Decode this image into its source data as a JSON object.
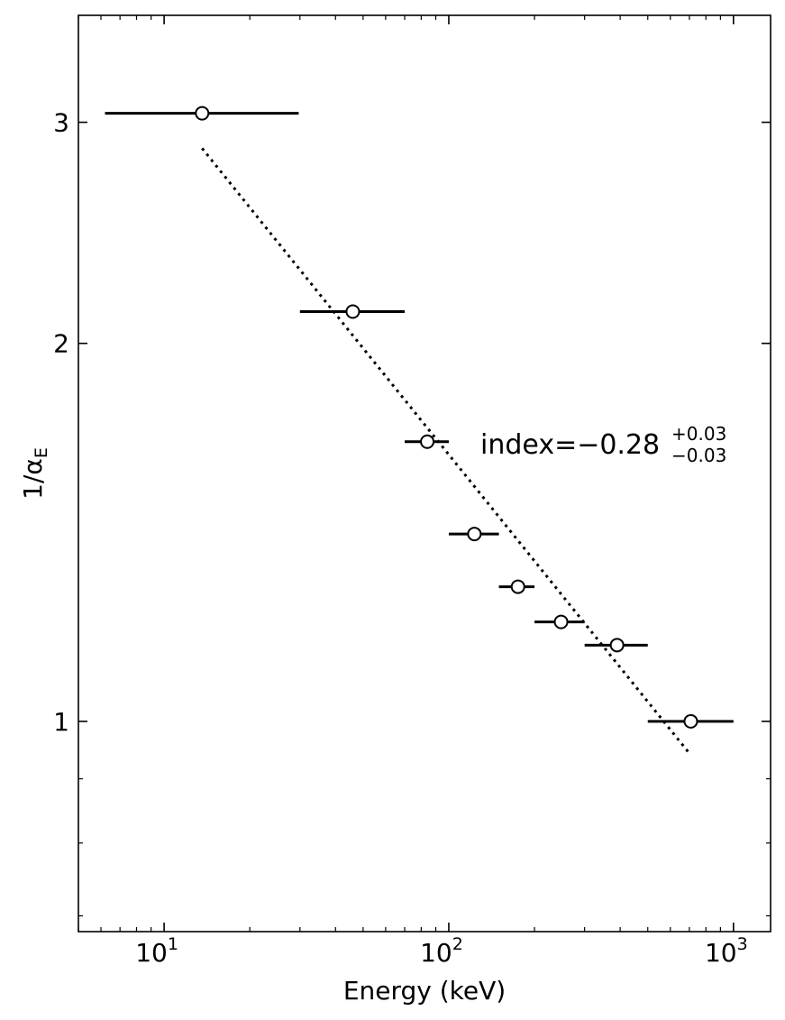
{
  "chart_data": {
    "type": "scatter",
    "xscale": "log",
    "yscale": "log",
    "xlabel": "Energy (keV)",
    "ylabel": "1/α",
    "ylabel_sub": "E",
    "xlim": [
      5,
      1350
    ],
    "ylim": [
      0.68,
      3.65
    ],
    "xticks_major": [
      {
        "value": 10,
        "base": "10",
        "exp": "1"
      },
      {
        "value": 100,
        "base": "10",
        "exp": "2"
      },
      {
        "value": 1000,
        "base": "10",
        "exp": "3"
      }
    ],
    "yticks_major": [
      {
        "value": 1,
        "label": "1"
      },
      {
        "value": 2,
        "label": "2"
      },
      {
        "value": 3,
        "label": "3"
      }
    ],
    "yticks_minor": [
      0.7,
      0.8,
      0.9
    ],
    "series": [
      {
        "marker": "open-circle",
        "color": "#000000",
        "points": [
          {
            "x": 13.6,
            "y": 3.05,
            "xlo": 6.2,
            "xhi": 29.7
          },
          {
            "x": 46,
            "y": 2.12,
            "xlo": 30,
            "xhi": 70
          },
          {
            "x": 84,
            "y": 1.67,
            "xlo": 70,
            "xhi": 100
          },
          {
            "x": 123,
            "y": 1.41,
            "xlo": 100,
            "xhi": 150
          },
          {
            "x": 175,
            "y": 1.28,
            "xlo": 150,
            "xhi": 200
          },
          {
            "x": 248,
            "y": 1.2,
            "xlo": 200,
            "xhi": 300
          },
          {
            "x": 390,
            "y": 1.15,
            "xlo": 300,
            "xhi": 500
          },
          {
            "x": 708,
            "y": 1.0,
            "xlo": 500,
            "xhi": 1000
          }
        ]
      }
    ],
    "fit_line": {
      "style": "dotted",
      "color": "#000000",
      "points": [
        {
          "x": 13.6,
          "y": 2.86
        },
        {
          "x": 708,
          "y": 0.94
        }
      ]
    },
    "annotation": {
      "text": "index=−0.28",
      "sup": "+0.03",
      "sub": "−0.03"
    },
    "grid": false,
    "legend": "none"
  }
}
